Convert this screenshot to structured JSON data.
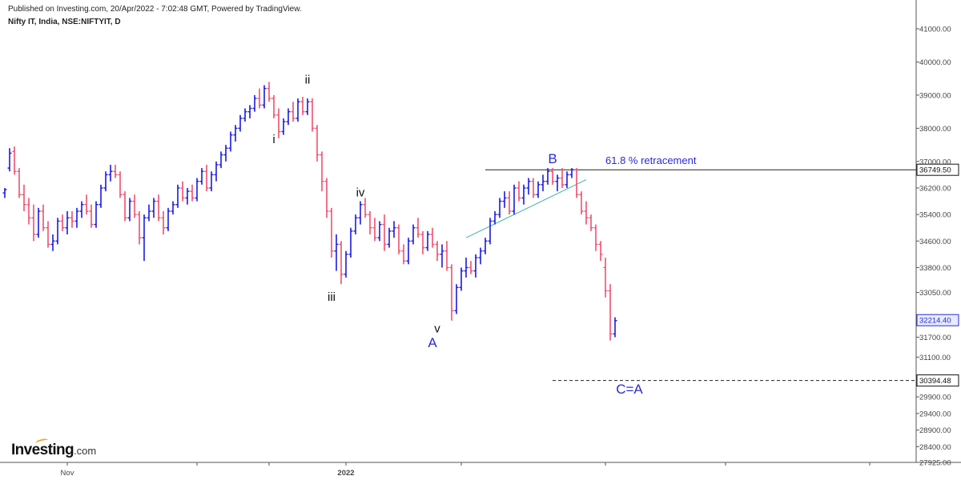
{
  "header": {
    "published": "Published on Investing.com, 20/Apr/2022 - 7:02:48 GMT, Powered by TradingView.",
    "symbol": "Nifty IT, India, NSE:NIFTYIT, D"
  },
  "brand": {
    "name": "Investing",
    "domain": ".com"
  },
  "colors": {
    "up": "#1a1ae0",
    "down": "#f0506e",
    "label_blue": "#2a2ad6",
    "trendline": "#3bb3a8",
    "line": "#222222"
  },
  "chart_data": {
    "type": "ohlc",
    "y_axis": {
      "range": [
        27925,
        41000
      ],
      "ticks": [
        "41000.00",
        "40000.00",
        "39000.00",
        "38000.00",
        "37000.00",
        "36200.00",
        "35400.00",
        "34600.00",
        "33800.00",
        "33050.00",
        "31700.00",
        "31100.00",
        "29900.00",
        "29400.00",
        "28900.00",
        "28400.00",
        "27925.00"
      ],
      "highlight_labels": [
        {
          "value": 36749.5,
          "text": "36749.50",
          "style": "black"
        },
        {
          "value": 32214.4,
          "text": "32214.40",
          "style": "blue"
        },
        {
          "value": 30394.48,
          "text": "30394.48",
          "style": "black"
        }
      ]
    },
    "x_axis": {
      "labels": [
        {
          "bar": 13,
          "text": "Nov"
        },
        {
          "bar": 71,
          "text": "2022"
        }
      ],
      "tick_bars": [
        13,
        40,
        55,
        71,
        95,
        125,
        150,
        180,
        205,
        230,
        260
      ]
    },
    "bars": [
      [
        36050,
        36200,
        35900,
        36150
      ],
      [
        36800,
        37400,
        36700,
        37250
      ],
      [
        37300,
        37450,
        36600,
        36700
      ],
      [
        36700,
        36800,
        35900,
        36000
      ],
      [
        36000,
        36300,
        35500,
        35700
      ],
      [
        35700,
        35900,
        35100,
        35300
      ],
      [
        35300,
        35700,
        34600,
        34800
      ],
      [
        34800,
        35600,
        34700,
        35500
      ],
      [
        35500,
        35700,
        34900,
        35000
      ],
      [
        35000,
        35200,
        34400,
        34500
      ],
      [
        34500,
        34800,
        34300,
        34600
      ],
      [
        34600,
        35300,
        34500,
        35200
      ],
      [
        35200,
        35400,
        34900,
        35000
      ],
      [
        35000,
        35500,
        34800,
        35300
      ],
      [
        35300,
        35500,
        35000,
        35200
      ],
      [
        35200,
        35600,
        35000,
        35500
      ],
      [
        35500,
        35800,
        35300,
        35700
      ],
      [
        35700,
        36000,
        35400,
        35500
      ],
      [
        35500,
        35700,
        35000,
        35100
      ],
      [
        35100,
        35800,
        35000,
        35700
      ],
      [
        35700,
        36300,
        35600,
        36200
      ],
      [
        36200,
        36700,
        36100,
        36600
      ],
      [
        36600,
        36900,
        36400,
        36700
      ],
      [
        36700,
        36900,
        36500,
        36600
      ],
      [
        36600,
        36700,
        35900,
        36000
      ],
      [
        36000,
        36100,
        35200,
        35300
      ],
      [
        35300,
        35900,
        35200,
        35800
      ],
      [
        35800,
        36000,
        35300,
        35400
      ],
      [
        35400,
        35500,
        34500,
        34700
      ],
      [
        34700,
        35400,
        34000,
        35300
      ],
      [
        35300,
        35700,
        35200,
        35500
      ],
      [
        35500,
        35900,
        35300,
        35800
      ],
      [
        35800,
        36000,
        35200,
        35300
      ],
      [
        35300,
        35500,
        34800,
        35000
      ],
      [
        35000,
        35600,
        34900,
        35500
      ],
      [
        35500,
        35800,
        35400,
        35700
      ],
      [
        35700,
        36300,
        35600,
        36200
      ],
      [
        36200,
        36400,
        35800,
        35900
      ],
      [
        35900,
        36200,
        35700,
        36100
      ],
      [
        36100,
        36300,
        35800,
        35900
      ],
      [
        35900,
        36500,
        35800,
        36400
      ],
      [
        36400,
        36800,
        36300,
        36700
      ],
      [
        36700,
        36900,
        36100,
        36200
      ],
      [
        36200,
        36700,
        36100,
        36600
      ],
      [
        36600,
        37000,
        36400,
        36900
      ],
      [
        36900,
        37300,
        36800,
        37200
      ],
      [
        37200,
        37500,
        37000,
        37400
      ],
      [
        37400,
        37900,
        37300,
        37800
      ],
      [
        37800,
        38100,
        37600,
        38000
      ],
      [
        38000,
        38400,
        37900,
        38300
      ],
      [
        38300,
        38600,
        38200,
        38500
      ],
      [
        38500,
        38700,
        38300,
        38600
      ],
      [
        38600,
        39000,
        38500,
        38900
      ],
      [
        38900,
        39200,
        38600,
        38700
      ],
      [
        38700,
        39300,
        38600,
        39200
      ],
      [
        39200,
        39400,
        38800,
        38900
      ],
      [
        38900,
        39000,
        38300,
        38400
      ],
      [
        38400,
        38600,
        37700,
        37900
      ],
      [
        37900,
        38300,
        37800,
        38200
      ],
      [
        38200,
        38600,
        38100,
        38500
      ],
      [
        38500,
        38800,
        38200,
        38300
      ],
      [
        38300,
        38900,
        38200,
        38800
      ],
      [
        38800,
        38950,
        38400,
        38500
      ],
      [
        38500,
        38900,
        38400,
        38800
      ],
      [
        38800,
        38900,
        37900,
        38000
      ],
      [
        38000,
        38100,
        37000,
        37200
      ],
      [
        37200,
        37300,
        36100,
        36400
      ],
      [
        36400,
        36500,
        35300,
        35500
      ],
      [
        35500,
        35600,
        34100,
        34300
      ],
      [
        34300,
        34800,
        33700,
        34500
      ],
      [
        34500,
        34600,
        33300,
        33600
      ],
      [
        33600,
        34300,
        33500,
        34200
      ],
      [
        34200,
        35000,
        34100,
        34900
      ],
      [
        34900,
        35400,
        34800,
        35300
      ],
      [
        35300,
        35800,
        35100,
        35700
      ],
      [
        35700,
        35900,
        35300,
        35400
      ],
      [
        35400,
        35500,
        34800,
        35000
      ],
      [
        35000,
        35300,
        34600,
        34700
      ],
      [
        34700,
        35200,
        34600,
        35100
      ],
      [
        35100,
        35400,
        34300,
        34500
      ],
      [
        34500,
        35000,
        34400,
        34900
      ],
      [
        34900,
        35200,
        34700,
        35000
      ],
      [
        35000,
        35100,
        34200,
        34300
      ],
      [
        34300,
        34500,
        33900,
        34000
      ],
      [
        34000,
        34700,
        33900,
        34600
      ],
      [
        34600,
        35100,
        34500,
        35000
      ],
      [
        35000,
        35300,
        34700,
        34800
      ],
      [
        34800,
        34900,
        34200,
        34400
      ],
      [
        34400,
        34900,
        34300,
        34800
      ],
      [
        34800,
        35000,
        34400,
        34500
      ],
      [
        34500,
        34600,
        34000,
        34200
      ],
      [
        34200,
        34500,
        33800,
        34300
      ],
      [
        34300,
        34600,
        33700,
        33800
      ],
      [
        33800,
        33900,
        32200,
        32500
      ],
      [
        32500,
        33300,
        32400,
        33200
      ],
      [
        33200,
        33800,
        33100,
        33700
      ],
      [
        33700,
        34100,
        33500,
        33800
      ],
      [
        33800,
        34000,
        33600,
        33700
      ],
      [
        33700,
        34200,
        33500,
        34100
      ],
      [
        34100,
        34400,
        33900,
        34300
      ],
      [
        34300,
        34700,
        34200,
        34600
      ],
      [
        34600,
        35300,
        34500,
        35200
      ],
      [
        35200,
        35500,
        35100,
        35400
      ],
      [
        35400,
        35900,
        35300,
        35800
      ],
      [
        35800,
        36100,
        35600,
        35900
      ],
      [
        35900,
        36100,
        35400,
        35500
      ],
      [
        35500,
        36300,
        35400,
        36200
      ],
      [
        36200,
        36400,
        35800,
        35900
      ],
      [
        35900,
        36300,
        35700,
        36200
      ],
      [
        36200,
        36500,
        36000,
        36400
      ],
      [
        36400,
        36500,
        35900,
        36000
      ],
      [
        36000,
        36400,
        35900,
        36300
      ],
      [
        36300,
        36600,
        36100,
        36400
      ],
      [
        36400,
        36800,
        36300,
        36700
      ],
      [
        36700,
        36800,
        36300,
        36400
      ],
      [
        36400,
        36600,
        36100,
        36500
      ],
      [
        36500,
        36800,
        36200,
        36300
      ],
      [
        36300,
        36700,
        36200,
        36600
      ],
      [
        36600,
        36800,
        36500,
        36750
      ],
      [
        36750,
        36800,
        35900,
        36000
      ],
      [
        36000,
        36100,
        35400,
        35500
      ],
      [
        35500,
        35800,
        35100,
        35300
      ],
      [
        35300,
        35400,
        34900,
        35000
      ],
      [
        35000,
        35100,
        34300,
        34500
      ],
      [
        34500,
        34600,
        34000,
        34200
      ],
      [
        33800,
        34100,
        32900,
        33100
      ],
      [
        33100,
        33300,
        31600,
        31800
      ],
      [
        31800,
        32300,
        31700,
        32200
      ]
    ],
    "annotations": [
      {
        "bar": 56,
        "value": 37550,
        "text": "i"
      },
      {
        "bar": 63,
        "value": 39350,
        "text": "ii"
      },
      {
        "bar": 68,
        "value": 32800,
        "text": "iii"
      },
      {
        "bar": 74,
        "value": 35950,
        "text": "iv"
      },
      {
        "bar": 90,
        "value": 31850,
        "text": "v"
      },
      {
        "bar": 89,
        "value": 31400,
        "text": "A",
        "blue": true
      },
      {
        "bar": 114,
        "value": 36950,
        "text": "B",
        "blue": true
      },
      {
        "bar": 130,
        "value": 30000,
        "text": "C=A",
        "blue": true
      },
      {
        "bar": 125,
        "value": 36920,
        "text": "61.8 % retracement",
        "blue": true
      }
    ],
    "lines": [
      {
        "kind": "horizontal",
        "value": 36749.5,
        "from_bar": 100,
        "dashed": false
      },
      {
        "kind": "horizontal",
        "value": 30394.48,
        "from_bar": 114,
        "dashed": true
      },
      {
        "kind": "trend",
        "from": [
          96,
          34700
        ],
        "to": [
          121,
          36450
        ]
      }
    ]
  }
}
